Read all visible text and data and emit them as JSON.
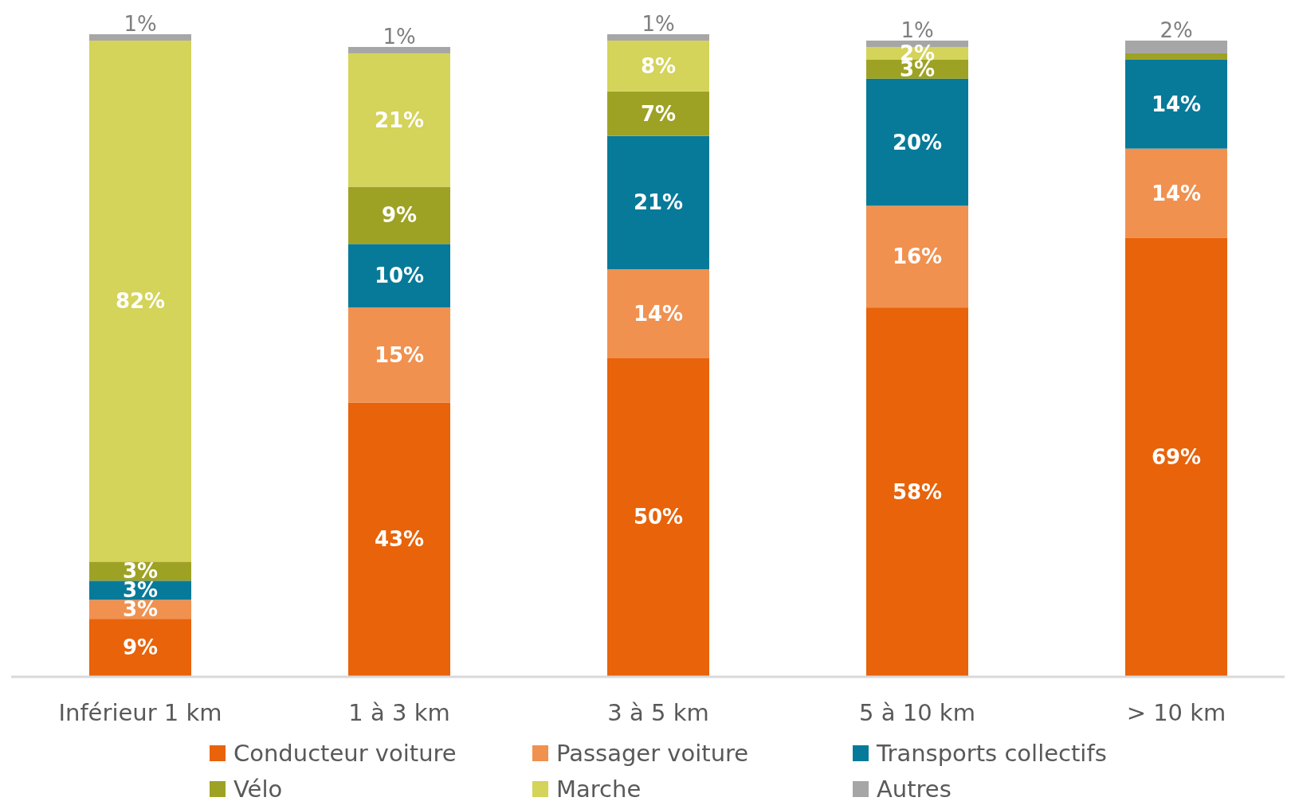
{
  "chart_data": {
    "type": "bar",
    "stacked": true,
    "categories": [
      "Inférieur 1 km",
      "1 à 3 km",
      "3 à 5 km",
      "5 à 10 km",
      "> 10 km"
    ],
    "series": [
      {
        "name": "Conducteur voiture",
        "color": "#e8630a",
        "values": [
          9,
          43,
          50,
          58,
          69
        ],
        "value_labels": [
          "9%",
          "43%",
          "50%",
          "58%",
          "69%"
        ]
      },
      {
        "name": "Passager voiture",
        "color": "#f09150",
        "values": [
          3,
          15,
          14,
          16,
          14
        ],
        "value_labels": [
          "3%",
          "15%",
          "14%",
          "16%",
          "14%"
        ]
      },
      {
        "name": "Transports collectifs",
        "color": "#077a99",
        "values": [
          3,
          10,
          21,
          20,
          14
        ],
        "value_labels": [
          "3%",
          "10%",
          "21%",
          "20%",
          "14%"
        ]
      },
      {
        "name": "Vélo",
        "color": "#9ea224",
        "values": [
          3,
          9,
          7,
          3,
          1
        ],
        "value_labels": [
          "3%",
          "9%",
          "7%",
          "3%",
          null
        ]
      },
      {
        "name": "Marche",
        "color": "#d4d35a",
        "values": [
          82,
          21,
          8,
          2,
          0
        ],
        "value_labels": [
          "82%",
          "21%",
          "8%",
          "2%",
          null
        ]
      },
      {
        "name": "Autres",
        "color": "#a6a6a6",
        "values": [
          1,
          1,
          1,
          1,
          2
        ],
        "value_labels": [
          "1%",
          "1%",
          "1%",
          "1%",
          "2%"
        ]
      }
    ],
    "legend": "bottom"
  }
}
